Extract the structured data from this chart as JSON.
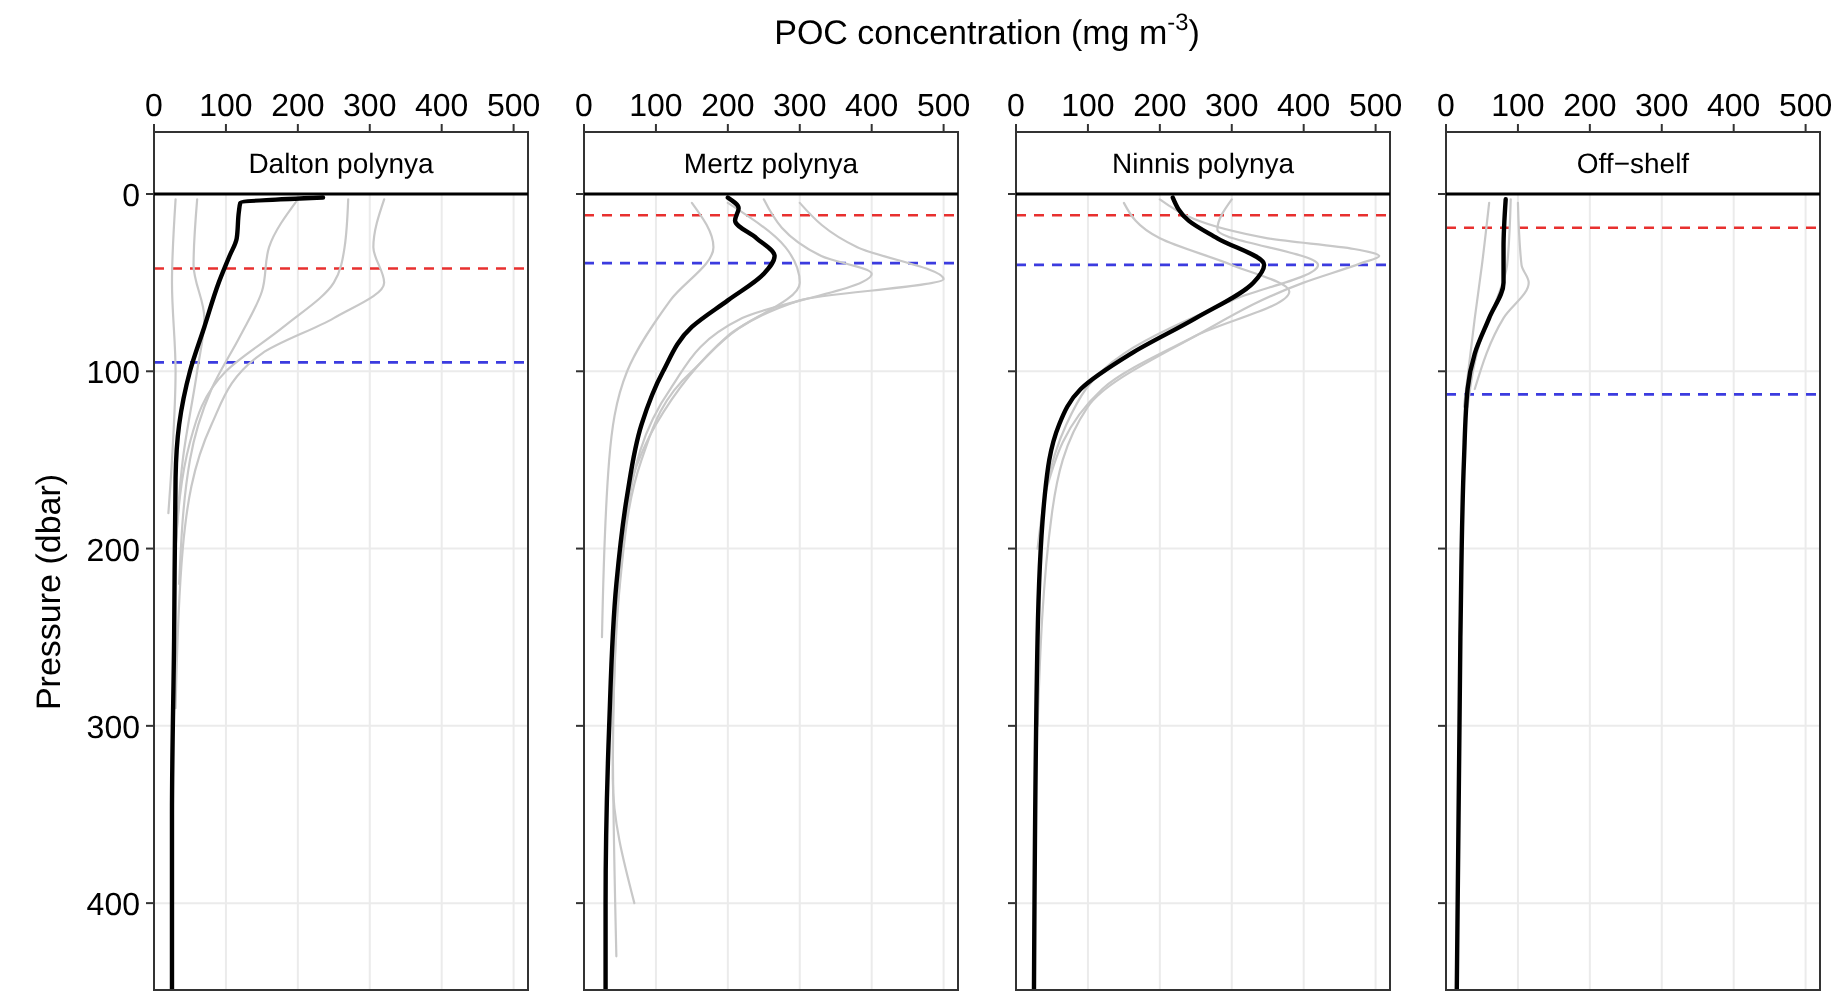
{
  "chart_data": [
    {
      "type": "line",
      "title": "Dalton polynya",
      "ylabel": "Pressure (dbar)",
      "xlim": [
        0,
        520
      ],
      "xticks": [
        0,
        100,
        200,
        300,
        400,
        500
      ],
      "ylim": [
        449,
        0
      ],
      "yticks": [
        0,
        100,
        200,
        300,
        400
      ],
      "grid": true,
      "line_style": "solid",
      "ref_lines": [
        {
          "axis": "y",
          "value": 42,
          "color": "#e8302f",
          "line_style": "dashed"
        },
        {
          "axis": "y",
          "value": 95,
          "color": "#3b3bdf",
          "line_style": "dashed"
        }
      ],
      "series": [
        {
          "color": "#c8c8c8",
          "x": [
            320,
            305,
            320,
            250,
            150,
            80,
            40,
            30
          ],
          "values": [
            3,
            30,
            50,
            70,
            90,
            130,
            200,
            290
          ]
        },
        {
          "color": "#c8c8c8",
          "x": [
            270,
            265,
            250,
            180,
            100,
            50,
            30
          ],
          "values": [
            3,
            30,
            50,
            75,
            100,
            140,
            200
          ]
        },
        {
          "color": "#c8c8c8",
          "x": [
            200,
            160,
            150,
            120,
            80,
            50,
            35
          ],
          "values": [
            3,
            30,
            55,
            80,
            110,
            150,
            220
          ]
        },
        {
          "color": "#c8c8c8",
          "x": [
            60,
            55,
            70,
            60,
            40,
            30
          ],
          "values": [
            3,
            40,
            70,
            100,
            150,
            200
          ]
        },
        {
          "color": "#c8c8c8",
          "x": [
            30,
            25,
            30,
            25,
            20
          ],
          "values": [
            3,
            50,
            100,
            150,
            180
          ]
        },
        {
          "color": "#000000",
          "x": [
            235,
            120,
            118,
            115,
            105,
            90,
            70,
            50,
            35,
            30,
            28,
            25,
            25
          ],
          "values": [
            2,
            5,
            10,
            25,
            35,
            50,
            75,
            100,
            130,
            160,
            250,
            350,
            449
          ]
        }
      ]
    },
    {
      "type": "line",
      "title": "Mertz polynya",
      "xlabel": "POC concentration (mg m$^{-3}$)",
      "xlim": [
        0,
        520
      ],
      "xticks": [
        0,
        100,
        200,
        300,
        400,
        500
      ],
      "ylim": [
        449,
        0
      ],
      "yticks": [
        0,
        100,
        200,
        300,
        400
      ],
      "grid": true,
      "line_style": "solid",
      "tick_labels": "x",
      "ref_lines": [
        {
          "axis": "y",
          "value": 12,
          "color": "#e8302f",
          "line_style": "dashed"
        },
        {
          "axis": "y",
          "value": 39,
          "color": "#3b3bdf",
          "line_style": "dashed"
        }
      ],
      "series": [
        {
          "color": "#c8c8c8",
          "x": [
            300,
            380,
            500,
            300,
            150,
            80,
            50,
            40
          ],
          "values": [
            5,
            30,
            48,
            60,
            100,
            150,
            220,
            300
          ]
        },
        {
          "color": "#c8c8c8",
          "x": [
            150,
            180,
            120,
            60,
            35,
            25
          ],
          "values": [
            5,
            30,
            60,
            100,
            150,
            250
          ]
        },
        {
          "color": "#c8c8c8",
          "x": [
            250,
            330,
            400,
            220,
            120,
            60,
            40,
            45
          ],
          "values": [
            3,
            35,
            45,
            70,
            110,
            180,
            300,
            430
          ]
        },
        {
          "color": "#c8c8c8",
          "x": [
            200,
            280,
            300,
            200,
            100,
            50,
            40,
            70
          ],
          "values": [
            5,
            30,
            50,
            80,
            130,
            200,
            330,
            400
          ]
        },
        {
          "color": "#000000",
          "x": [
            200,
            215,
            210,
            240,
            265,
            250,
            200,
            150,
            110,
            80,
            60,
            45,
            35,
            30,
            30
          ],
          "values": [
            2,
            8,
            15,
            25,
            35,
            45,
            60,
            75,
            100,
            130,
            170,
            220,
            300,
            400,
            449
          ]
        }
      ]
    },
    {
      "type": "line",
      "title": "Ninnis polynya",
      "xlim": [
        0,
        520
      ],
      "xticks": [
        0,
        100,
        200,
        300,
        400,
        500
      ],
      "ylim": [
        449,
        0
      ],
      "yticks": [
        0,
        100,
        200,
        300,
        400
      ],
      "grid": true,
      "line_style": "solid",
      "tick_labels": "x",
      "ref_lines": [
        {
          "axis": "y",
          "value": 12,
          "color": "#e8302f",
          "line_style": "dashed"
        },
        {
          "axis": "y",
          "value": 40,
          "color": "#3b3bdf",
          "line_style": "dashed"
        }
      ],
      "series": [
        {
          "color": "#c8c8c8",
          "x": [
            200,
            350,
            470,
            505,
            480,
            400,
            250,
            100,
            50,
            30
          ],
          "values": [
            3,
            25,
            31,
            35,
            39,
            50,
            80,
            120,
            180,
            300
          ]
        },
        {
          "color": "#c8c8c8",
          "x": [
            150,
            200,
            300,
            380,
            250,
            120,
            40
          ],
          "values": [
            5,
            25,
            40,
            55,
            80,
            110,
            170
          ]
        },
        {
          "color": "#c8c8c8",
          "x": [
            300,
            280,
            420,
            300,
            150,
            70,
            30
          ],
          "values": [
            3,
            20,
            40,
            60,
            90,
            130,
            200
          ]
        },
        {
          "color": "#000000",
          "x": [
            218,
            240,
            280,
            345,
            330,
            250,
            160,
            90,
            60,
            40,
            30,
            25
          ],
          "values": [
            2,
            15,
            25,
            40,
            50,
            70,
            90,
            110,
            130,
            170,
            250,
            449
          ]
        }
      ]
    },
    {
      "type": "line",
      "title": "Off−shelf",
      "xlim": [
        0,
        520
      ],
      "xticks": [
        0,
        100,
        200,
        300,
        400,
        500
      ],
      "ylim": [
        449,
        0
      ],
      "yticks": [
        0,
        100,
        200,
        300,
        400
      ],
      "grid": true,
      "line_style": "solid",
      "tick_labels": "x",
      "ref_lines": [
        {
          "axis": "y",
          "value": 19,
          "color": "#e8302f",
          "line_style": "dashed"
        },
        {
          "axis": "y",
          "value": 113,
          "color": "#3b3bdf",
          "line_style": "dashed"
        }
      ],
      "series": [
        {
          "color": "#c8c8c8",
          "x": [
            100,
            105,
            115,
            80,
            40
          ],
          "values": [
            5,
            40,
            50,
            70,
            110
          ]
        },
        {
          "color": "#c8c8c8",
          "x": [
            60,
            50,
            40,
            25
          ],
          "values": [
            5,
            40,
            70,
            120
          ]
        },
        {
          "color": "#c8c8c8",
          "x": [
            90,
            85,
            70,
            50,
            30
          ],
          "values": [
            3,
            40,
            60,
            80,
            120
          ]
        },
        {
          "color": "#000000",
          "x": [
            83,
            80,
            80,
            60,
            40,
            30,
            25,
            20,
            15
          ],
          "values": [
            3,
            30,
            50,
            70,
            90,
            110,
            150,
            250,
            449
          ]
        }
      ]
    }
  ]
}
